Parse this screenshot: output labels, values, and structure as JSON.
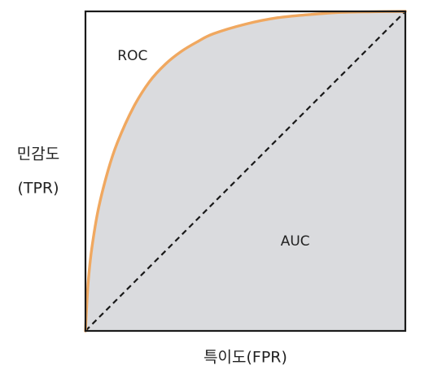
{
  "chart_data": {
    "type": "area",
    "title": "",
    "xlabel": "특이도(FPR)",
    "ylabel_lines": [
      "민감도",
      "(TPR)"
    ],
    "xlim": [
      0,
      1
    ],
    "ylim": [
      0,
      1
    ],
    "grid": false,
    "series": [
      {
        "name": "ROC",
        "style": "solid",
        "fill_under": true,
        "x": [
          0,
          0.005,
          0.01,
          0.02,
          0.04,
          0.07,
          0.1,
          0.15,
          0.2,
          0.25,
          0.3,
          0.35,
          0.4,
          0.5,
          0.6,
          0.7,
          0.8,
          0.9,
          1.0
        ],
        "y": [
          0,
          0.1,
          0.17,
          0.26,
          0.38,
          0.5,
          0.59,
          0.7,
          0.78,
          0.835,
          0.875,
          0.905,
          0.93,
          0.96,
          0.98,
          0.99,
          0.997,
          0.999,
          1.0
        ]
      },
      {
        "style": "dashed",
        "x": [
          0,
          1
        ],
        "y": [
          0,
          1
        ]
      }
    ],
    "annotations": [
      {
        "text": "ROC",
        "x": 0.1,
        "y": 0.86
      },
      {
        "text": "AUC",
        "x": 0.61,
        "y": 0.28
      }
    ]
  },
  "colors": {
    "roc_curve": "#F0A860",
    "auc_fill": "#DADBDE",
    "frame": "#1a1a1a",
    "diagonal": "#1a1a1a",
    "text": "#222222"
  }
}
